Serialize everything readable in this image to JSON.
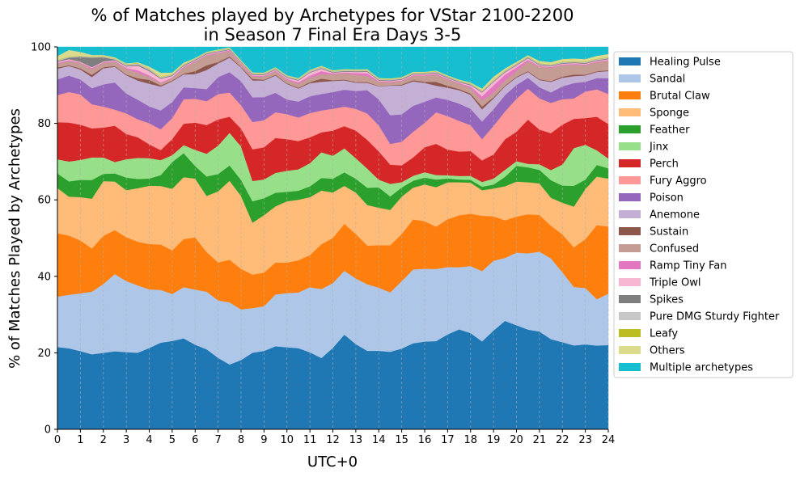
{
  "chart_data": {
    "type": "area",
    "stacked": true,
    "title": "% of Matches played by Archetypes for VStar 2100-2200",
    "subtitle": "in Season 7 Final Era Days 3-5",
    "xlabel": "UTC+0",
    "ylabel": "% of Matches Played by Archetypes",
    "xlim": [
      0,
      24
    ],
    "ylim": [
      0,
      100
    ],
    "x_ticks": [
      0,
      1,
      2,
      3,
      4,
      5,
      6,
      7,
      8,
      9,
      10,
      11,
      12,
      13,
      14,
      15,
      16,
      17,
      18,
      19,
      20,
      21,
      22,
      23,
      24
    ],
    "y_ticks": [
      0,
      20,
      40,
      60,
      80,
      100
    ],
    "grid": "vertical-dashed",
    "legend_position": "outside-right",
    "x": [
      0,
      0.5,
      1,
      1.5,
      2,
      2.5,
      3,
      3.5,
      4,
      4.5,
      5,
      5.5,
      6,
      6.5,
      7,
      7.5,
      8,
      8.5,
      9,
      9.5,
      10,
      10.5,
      11,
      11.5,
      12,
      12.5,
      13,
      13.5,
      14,
      14.5,
      15,
      15.5,
      16,
      16.5,
      17,
      17.5,
      18,
      18.5,
      19,
      19.5,
      20,
      20.5,
      21,
      21.5,
      22,
      22.5,
      23,
      23.5,
      24
    ],
    "series": [
      {
        "name": "Healing Pulse",
        "color": "#1f77b4",
        "values": [
          21.5,
          21.2,
          20.4,
          19.6,
          20,
          20.4,
          20.2,
          20,
          21.2,
          22.5,
          23.1,
          23.8,
          23,
          21.8,
          19.4,
          16.9,
          19,
          20.8,
          21.7,
          22.6,
          22.6,
          22.4,
          20.6,
          18.6,
          22,
          25.2,
          22.8,
          20.5,
          20.5,
          20.2,
          21.2,
          22.5,
          22.9,
          23.2,
          24.4,
          25.4,
          24.1,
          22.4,
          24.9,
          27.7,
          26.5,
          25.5,
          24.5,
          23.2,
          22.3,
          21.8,
          21.7,
          21.7,
          21.3
        ]
      },
      {
        "name": "Sandal",
        "color": "#aec7e8",
        "values": [
          13.2,
          14,
          15.1,
          16.4,
          18,
          20.2,
          18.6,
          17.6,
          15.3,
          13.7,
          12.3,
          13.4,
          15,
          15.7,
          15.6,
          16.2,
          13.9,
          12.1,
          12.4,
          14.1,
          14.9,
          15.4,
          17.4,
          18,
          17.5,
          17,
          17.6,
          17.4,
          16.5,
          15.5,
          17.7,
          19.3,
          19,
          19,
          17.3,
          15.8,
          16.8,
          17.9,
          17.6,
          16.1,
          18.5,
          19.5,
          20,
          20.8,
          17.9,
          15.2,
          14.4,
          12,
          13
        ]
      },
      {
        "name": "Brutal Claw",
        "color": "#ff7f0e",
        "values": [
          16.6,
          15.5,
          13.8,
          11.3,
          12.6,
          11.5,
          11.5,
          11.4,
          11.8,
          11.8,
          11.4,
          12.6,
          14.2,
          10.8,
          10.3,
          11.1,
          11.1,
          9.1,
          9.3,
          8.7,
          8.4,
          8.9,
          8.6,
          11.7,
          12.2,
          12.5,
          11.9,
          10.1,
          11.1,
          12.3,
          12.4,
          13.1,
          12.4,
          11.1,
          12.3,
          13.2,
          13.1,
          14.1,
          11.2,
          9.6,
          9.2,
          10,
          9.2,
          8.4,
          9.7,
          10.3,
          12.5,
          19.2,
          17
        ]
      },
      {
        "name": "Sponge",
        "color": "#ffbb78",
        "values": [
          11.8,
          10.2,
          11.3,
          13,
          14.3,
          12.7,
          12.3,
          14,
          15.2,
          15.2,
          16.1,
          16.2,
          16,
          15.3,
          19.3,
          20.6,
          20,
          14.1,
          15.9,
          15.3,
          16.9,
          16.7,
          15.5,
          14,
          12.3,
          10.1,
          11.1,
          10.6,
          9.8,
          9.2,
          9.8,
          8.3,
          9.6,
          10.4,
          9.5,
          8.4,
          7.8,
          6.5,
          7,
          8.7,
          8.9,
          8.2,
          7.9,
          7.2,
          8.1,
          10.6,
          12.8,
          12.6,
          12.1
        ]
      },
      {
        "name": "Feather",
        "color": "#2ca02c",
        "values": [
          3.8,
          4,
          4.5,
          4.9,
          1.9,
          2.1,
          3.3,
          2.4,
          1.9,
          2.8,
          7,
          6.3,
          3.4,
          5.3,
          4.7,
          4,
          4.4,
          5.8,
          4.7,
          3.7,
          2.6,
          2.5,
          2.9,
          3.3,
          3.7,
          3.6,
          3.7,
          4.5,
          5.3,
          3.5,
          2.4,
          1.8,
          1.8,
          2,
          1,
          0.7,
          0.7,
          0.9,
          1,
          2.4,
          4,
          3.8,
          3.4,
          4.5,
          4.4,
          5.4,
          2.4,
          3,
          2.6
        ]
      },
      {
        "name": "Jinx",
        "color": "#98df8a",
        "values": [
          3.7,
          5.2,
          5.2,
          5.9,
          4.3,
          3,
          4.8,
          5.5,
          5.3,
          3.9,
          1.8,
          2.1,
          4.4,
          6.2,
          7.7,
          8.5,
          9.2,
          5.5,
          5.2,
          5.4,
          5.8,
          5.9,
          6.2,
          6.7,
          6.2,
          6.4,
          5.5,
          5,
          2,
          3.3,
          1.4,
          1.3,
          1.4,
          1.2,
          0.8,
          0.9,
          1,
          1.2,
          1.5,
          1.8,
          1.2,
          0.9,
          1.4,
          2.6,
          5.4,
          9.8,
          8.9,
          3.8,
          2.5
        ]
      },
      {
        "name": "Perch",
        "color": "#d62728",
        "values": [
          9.7,
          10.2,
          9.2,
          7.6,
          7.8,
          9.5,
          6.6,
          5.4,
          3.6,
          2.6,
          4.2,
          5.6,
          7.4,
          7.8,
          7.1,
          4.2,
          4.9,
          8.6,
          8.9,
          9.5,
          8.7,
          7.8,
          6.9,
          5.2,
          6.8,
          5.9,
          7.4,
          7.5,
          7.4,
          5,
          4.4,
          4.8,
          6.5,
          8.2,
          6.6,
          6.2,
          6.2,
          5.5,
          6.1,
          7.8,
          7.5,
          11.3,
          8.7,
          9.5,
          10.2,
          7.6,
          6.8,
          8.7,
          8.7
        ]
      },
      {
        "name": "Fury Aggro",
        "color": "#ff9896",
        "values": [
          7.1,
          8,
          7.9,
          6.3,
          5.5,
          4.2,
          5.4,
          4.7,
          5.5,
          5.4,
          5.5,
          6.4,
          6.5,
          6.5,
          6.9,
          6.3,
          6.4,
          7.4,
          7.5,
          7,
          6.9,
          6.5,
          6.5,
          5.7,
          5.9,
          5.2,
          5.8,
          6.9,
          6.8,
          5.4,
          6.2,
          6.7,
          6.4,
          8.3,
          8.6,
          7.8,
          6.5,
          5.4,
          7.2,
          7.1,
          8.4,
          7.9,
          7.8,
          7.8,
          6.5,
          5.3,
          6.8,
          7.1,
          7.6
        ]
      },
      {
        "name": "Poison",
        "color": "#9467bd",
        "values": [
          4.1,
          4.3,
          3.9,
          4.2,
          5.8,
          7.1,
          5.2,
          5.1,
          4.4,
          4.9,
          4.2,
          3.1,
          2.9,
          3.3,
          4.6,
          5.3,
          6.6,
          6.7,
          6.4,
          5.3,
          4,
          4.4,
          4.5,
          4.3,
          4.5,
          4.5,
          4.8,
          6.1,
          6.8,
          7.5,
          7.2,
          6.8,
          5.5,
          3.9,
          4.2,
          4.4,
          4.1,
          4.5,
          4.2,
          4.2,
          3.5,
          2.8,
          2.8,
          2.7,
          3.3,
          4,
          2.5,
          2.9,
          4
        ]
      },
      {
        "name": "Anemone",
        "color": "#c5b0d5",
        "values": [
          2.8,
          2.5,
          2.6,
          2.9,
          4.2,
          4.1,
          4.8,
          5,
          5.9,
          6.2,
          5.4,
          3.4,
          3.8,
          5.2,
          3.7,
          3.8,
          3.7,
          4.6,
          4.6,
          4.7,
          4.3,
          3.6,
          3.5,
          3.2,
          3,
          2.5,
          2.2,
          1.9,
          3.4,
          7.7,
          7.6,
          6.4,
          4.9,
          3.1,
          3.1,
          3.4,
          3.5,
          3.1,
          2.7,
          2.2,
          1.9,
          1.5,
          1.8,
          2.7,
          2.2,
          1.8,
          1.6,
          1.6,
          1.8
        ]
      },
      {
        "name": "Sustain",
        "color": "#8c564b",
        "values": [
          0.3,
          0.2,
          0.3,
          0.6,
          0.3,
          0.2,
          0.2,
          0.6,
          1,
          0.3,
          0.2,
          0.2,
          0.8,
          1.3,
          0.4,
          0.3,
          0.2,
          0.4,
          0.2,
          0.2,
          0.2,
          0.2,
          0.3,
          0.8,
          0.2,
          0.2,
          0.2,
          0.2,
          0.1,
          0.1,
          0.2,
          0.3,
          0.3,
          1,
          0.5,
          0.3,
          0.3,
          0.7,
          0.3,
          0.2,
          0.2,
          0.2,
          0.2,
          0.2,
          0.3,
          0.4,
          0.2,
          0.2,
          0.2
        ]
      },
      {
        "name": "Confused",
        "color": "#c49c94",
        "values": [
          1,
          1.1,
          1.3,
          1.5,
          1.1,
          1.1,
          1.4,
          1.5,
          0.8,
          0.6,
          0.6,
          1.6,
          2.5,
          2.6,
          2.3,
          1.4,
          0.8,
          0.7,
          0.9,
          1,
          0.9,
          1.1,
          1.2,
          1.2,
          1.5,
          1.7,
          1.9,
          1.6,
          1,
          0.7,
          0.9,
          1.1,
          1.5,
          1.9,
          1.6,
          1.3,
          1.4,
          1.6,
          1.2,
          1.3,
          1.5,
          2.5,
          3.1,
          3.4,
          2.9,
          2.6,
          2.4,
          2.3,
          2.4
        ]
      },
      {
        "name": "Ramp Tiny Fan",
        "color": "#e377c2",
        "values": [
          0.2,
          0.2,
          0.2,
          0.3,
          0.2,
          0.2,
          0.3,
          0.6,
          0.4,
          0.2,
          0.2,
          0.2,
          0.2,
          0.2,
          0.2,
          0.2,
          0.2,
          0.2,
          0.2,
          0.2,
          0.3,
          0.4,
          0.5,
          0.8,
          0.3,
          0.2,
          0.5,
          0.7,
          0.2,
          0.2,
          0.2,
          0.2,
          0.2,
          0.2,
          0.2,
          0.2,
          0.4,
          1,
          1.8,
          1.5,
          0.9,
          0.4,
          0.2,
          0.2,
          0.2,
          0.2,
          0.2,
          0.2,
          0.2
        ]
      },
      {
        "name": "Triple Owl",
        "color": "#f7b6d2",
        "values": [
          0.3,
          0.3,
          0.2,
          0.2,
          0.2,
          0.2,
          0.4,
          1.2,
          1.1,
          0.9,
          0.4,
          0.2,
          0.2,
          0.2,
          0.2,
          0.1,
          0.2,
          0.2,
          0.2,
          0.2,
          0.3,
          0.5,
          0.8,
          0.6,
          0.2,
          0.2,
          0.3,
          0.4,
          0.2,
          0.2,
          0.2,
          0.2,
          0.2,
          0.2,
          0.2,
          0.2,
          0.3,
          1,
          0.9,
          0.6,
          0.5,
          0.4,
          0.2,
          0.2,
          0.2,
          0.2,
          0.2,
          0.2,
          0.2
        ]
      },
      {
        "name": "Spikes",
        "color": "#7f7f7f",
        "values": [
          0.2,
          0.4,
          1.3,
          2.5,
          1.1,
          0.2,
          0.2,
          0.3,
          0.3,
          0.2,
          0.2,
          0.2,
          0.2,
          0.2,
          0.2,
          0.2,
          0.2,
          0.2,
          0.2,
          0.2,
          0.2,
          0.2,
          0.2,
          0.2,
          0.2,
          0.2,
          0.2,
          0.2,
          0.2,
          0.2,
          0.2,
          0.2,
          0.2,
          0.2,
          0.2,
          0.2,
          0.2,
          0.2,
          0.2,
          0.2,
          0.2,
          0.2,
          0.2,
          0.2,
          0.2,
          0.2,
          0.2,
          0.2,
          0.2
        ]
      },
      {
        "name": "Pure DMG Sturdy Fighter",
        "color": "#c7c7c7",
        "values": [
          0.2,
          0.2,
          0.2,
          0.2,
          0.2,
          0.2,
          0.3,
          0.3,
          0.3,
          0.2,
          0.2,
          0.2,
          0.2,
          0.2,
          0.2,
          0.2,
          0.2,
          0.2,
          0.2,
          0.2,
          0.2,
          0.2,
          0.3,
          0.3,
          0.2,
          0.2,
          0.2,
          0.2,
          0.2,
          0.2,
          0.2,
          0.2,
          0.2,
          0.2,
          0.2,
          0.2,
          0.2,
          0.2,
          0.2,
          0.2,
          0.2,
          0.2,
          0.2,
          0.2,
          0.2,
          0.2,
          0.2,
          0.2,
          0.2
        ]
      },
      {
        "name": "Leafy",
        "color": "#bcbd22",
        "values": [
          0.1,
          0.1,
          0.1,
          0.1,
          0.1,
          0.1,
          0.1,
          0.1,
          0.1,
          0.1,
          0.1,
          0.1,
          0.1,
          0.1,
          0.1,
          0.1,
          0.1,
          0.1,
          0.1,
          0.1,
          0.1,
          0.1,
          0.1,
          0.1,
          0.1,
          0.1,
          0.1,
          0.1,
          0.1,
          0.1,
          0.1,
          0.1,
          0.1,
          0.1,
          0.1,
          0.1,
          0.1,
          0.1,
          0.1,
          0.1,
          0.1,
          0.1,
          0.1,
          0.1,
          0.1,
          0.1,
          0.1,
          0.1,
          0.1
        ]
      },
      {
        "name": "Others",
        "color": "#dbdb8d",
        "values": [
          1,
          1.7,
          1,
          0.4,
          0.3,
          0.3,
          0.2,
          0.2,
          0.5,
          1.1,
          0.4,
          0.4,
          0.2,
          0.2,
          0.2,
          0.2,
          0.2,
          0.2,
          0.2,
          0.2,
          0.2,
          0.2,
          0.2,
          0.2,
          0.2,
          0.2,
          0.2,
          0.2,
          0.2,
          0.2,
          0.2,
          0.2,
          0.2,
          0.2,
          0.2,
          0.2,
          0.2,
          0.5,
          0.8,
          0.5,
          0.4,
          0.3,
          0.6,
          0.6,
          0.7,
          0.7,
          0.7,
          0.8,
          0.8
        ]
      },
      {
        "name": "Multiple archetypes",
        "color": "#17becf",
        "values": [
          2.4,
          0.8,
          1.3,
          2.1,
          2.1,
          2.7,
          4.3,
          4,
          5.1,
          6.7,
          6.7,
          4.1,
          3,
          1.3,
          0.7,
          0.1,
          3.6,
          6.9,
          7.1,
          5.5,
          7.8,
          8.6,
          6.1,
          4.9,
          6.3,
          5.9,
          6,
          5.8,
          8.1,
          8.2,
          7.9,
          6.5,
          6.5,
          6.2,
          7.3,
          8.3,
          8.9,
          10.6,
          7.5,
          5.5,
          3.8,
          2.1,
          3.5,
          3.9,
          3.1,
          3,
          3.1,
          2.3,
          1.8
        ]
      }
    ]
  }
}
